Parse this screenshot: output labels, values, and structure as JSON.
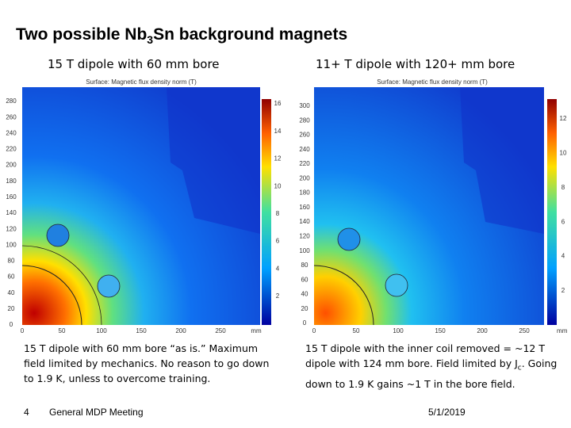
{
  "header": {
    "title_parts": [
      "Two possible Nb",
      "3",
      "Sn background magnets"
    ]
  },
  "panels": [
    {
      "subtitle": "15 T dipole with 60 mm bore",
      "plot_title": "Surface: Magnetic flux density norm (T)",
      "yticks": [
        0,
        20,
        40,
        60,
        80,
        100,
        120,
        140,
        160,
        180,
        200,
        220,
        240,
        260,
        280
      ],
      "xticks": [
        0,
        50,
        100,
        150,
        200,
        250
      ],
      "x_unit": "mm",
      "colorbar_ticks": [
        2,
        4,
        6,
        8,
        10,
        12,
        14,
        16
      ],
      "caption_parts": [
        "15 T dipole with 60 mm bore “as is.” Maximum field limited by mechanics. No reason to go down to 1.9 K, unless to overcome training."
      ]
    },
    {
      "subtitle": "11+ T dipole with 120+ mm bore",
      "plot_title": "Surface: Magnetic flux density norm (T)",
      "yticks": [
        0,
        20,
        40,
        60,
        80,
        100,
        120,
        140,
        160,
        180,
        200,
        220,
        240,
        260,
        280,
        300
      ],
      "xticks": [
        0,
        50,
        100,
        150,
        200,
        250
      ],
      "x_unit": "mm",
      "colorbar_ticks": [
        2,
        4,
        6,
        8,
        10,
        12
      ],
      "caption_parts": [
        "15 T dipole with the inner coil removed = ~12 T dipole with 124 mm bore. Field limited by J",
        "c",
        ". Going down to 1.9 K gains ~1 T in the bore field."
      ]
    }
  ],
  "footer": {
    "page": "4",
    "meeting": "General MDP Meeting",
    "date": "5/1/2019"
  }
}
